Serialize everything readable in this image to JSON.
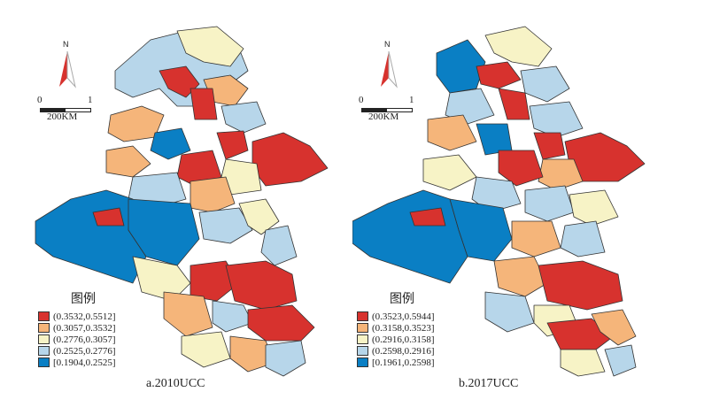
{
  "panels": [
    {
      "id": "a",
      "caption": "a.2010UCC",
      "north_label": "N",
      "scale": {
        "zero": "0",
        "one": "1",
        "unit": "200KM"
      },
      "legend": {
        "title": "图例",
        "classes": [
          {
            "range": "(0.3532,0.5512]",
            "color": "#d7322e"
          },
          {
            "range": "(0.3057,0.3532]",
            "color": "#f5b57a"
          },
          {
            "range": "(0.2776,0.3057]",
            "color": "#f7f3c6"
          },
          {
            "range": "(0.2525,0.2776]",
            "color": "#b7d6ea"
          },
          {
            "range": "[0.1904,0.2525]",
            "color": "#0a7fc4"
          }
        ]
      }
    },
    {
      "id": "b",
      "caption": "b.2017UCC",
      "north_label": "N",
      "scale": {
        "zero": "0",
        "one": "1",
        "unit": "200KM"
      },
      "legend": {
        "title": "图例",
        "classes": [
          {
            "range": "(0.3523,0.5944]",
            "color": "#d7322e"
          },
          {
            "range": "(0.3158,0.3523]",
            "color": "#f5b57a"
          },
          {
            "range": "(0.2916,0.3158]",
            "color": "#f7f3c6"
          },
          {
            "range": "(0.2598,0.2916]",
            "color": "#b7d6ea"
          },
          {
            "range": "[0.1961,0.2598]",
            "color": "#0a7fc4"
          }
        ]
      }
    }
  ]
}
